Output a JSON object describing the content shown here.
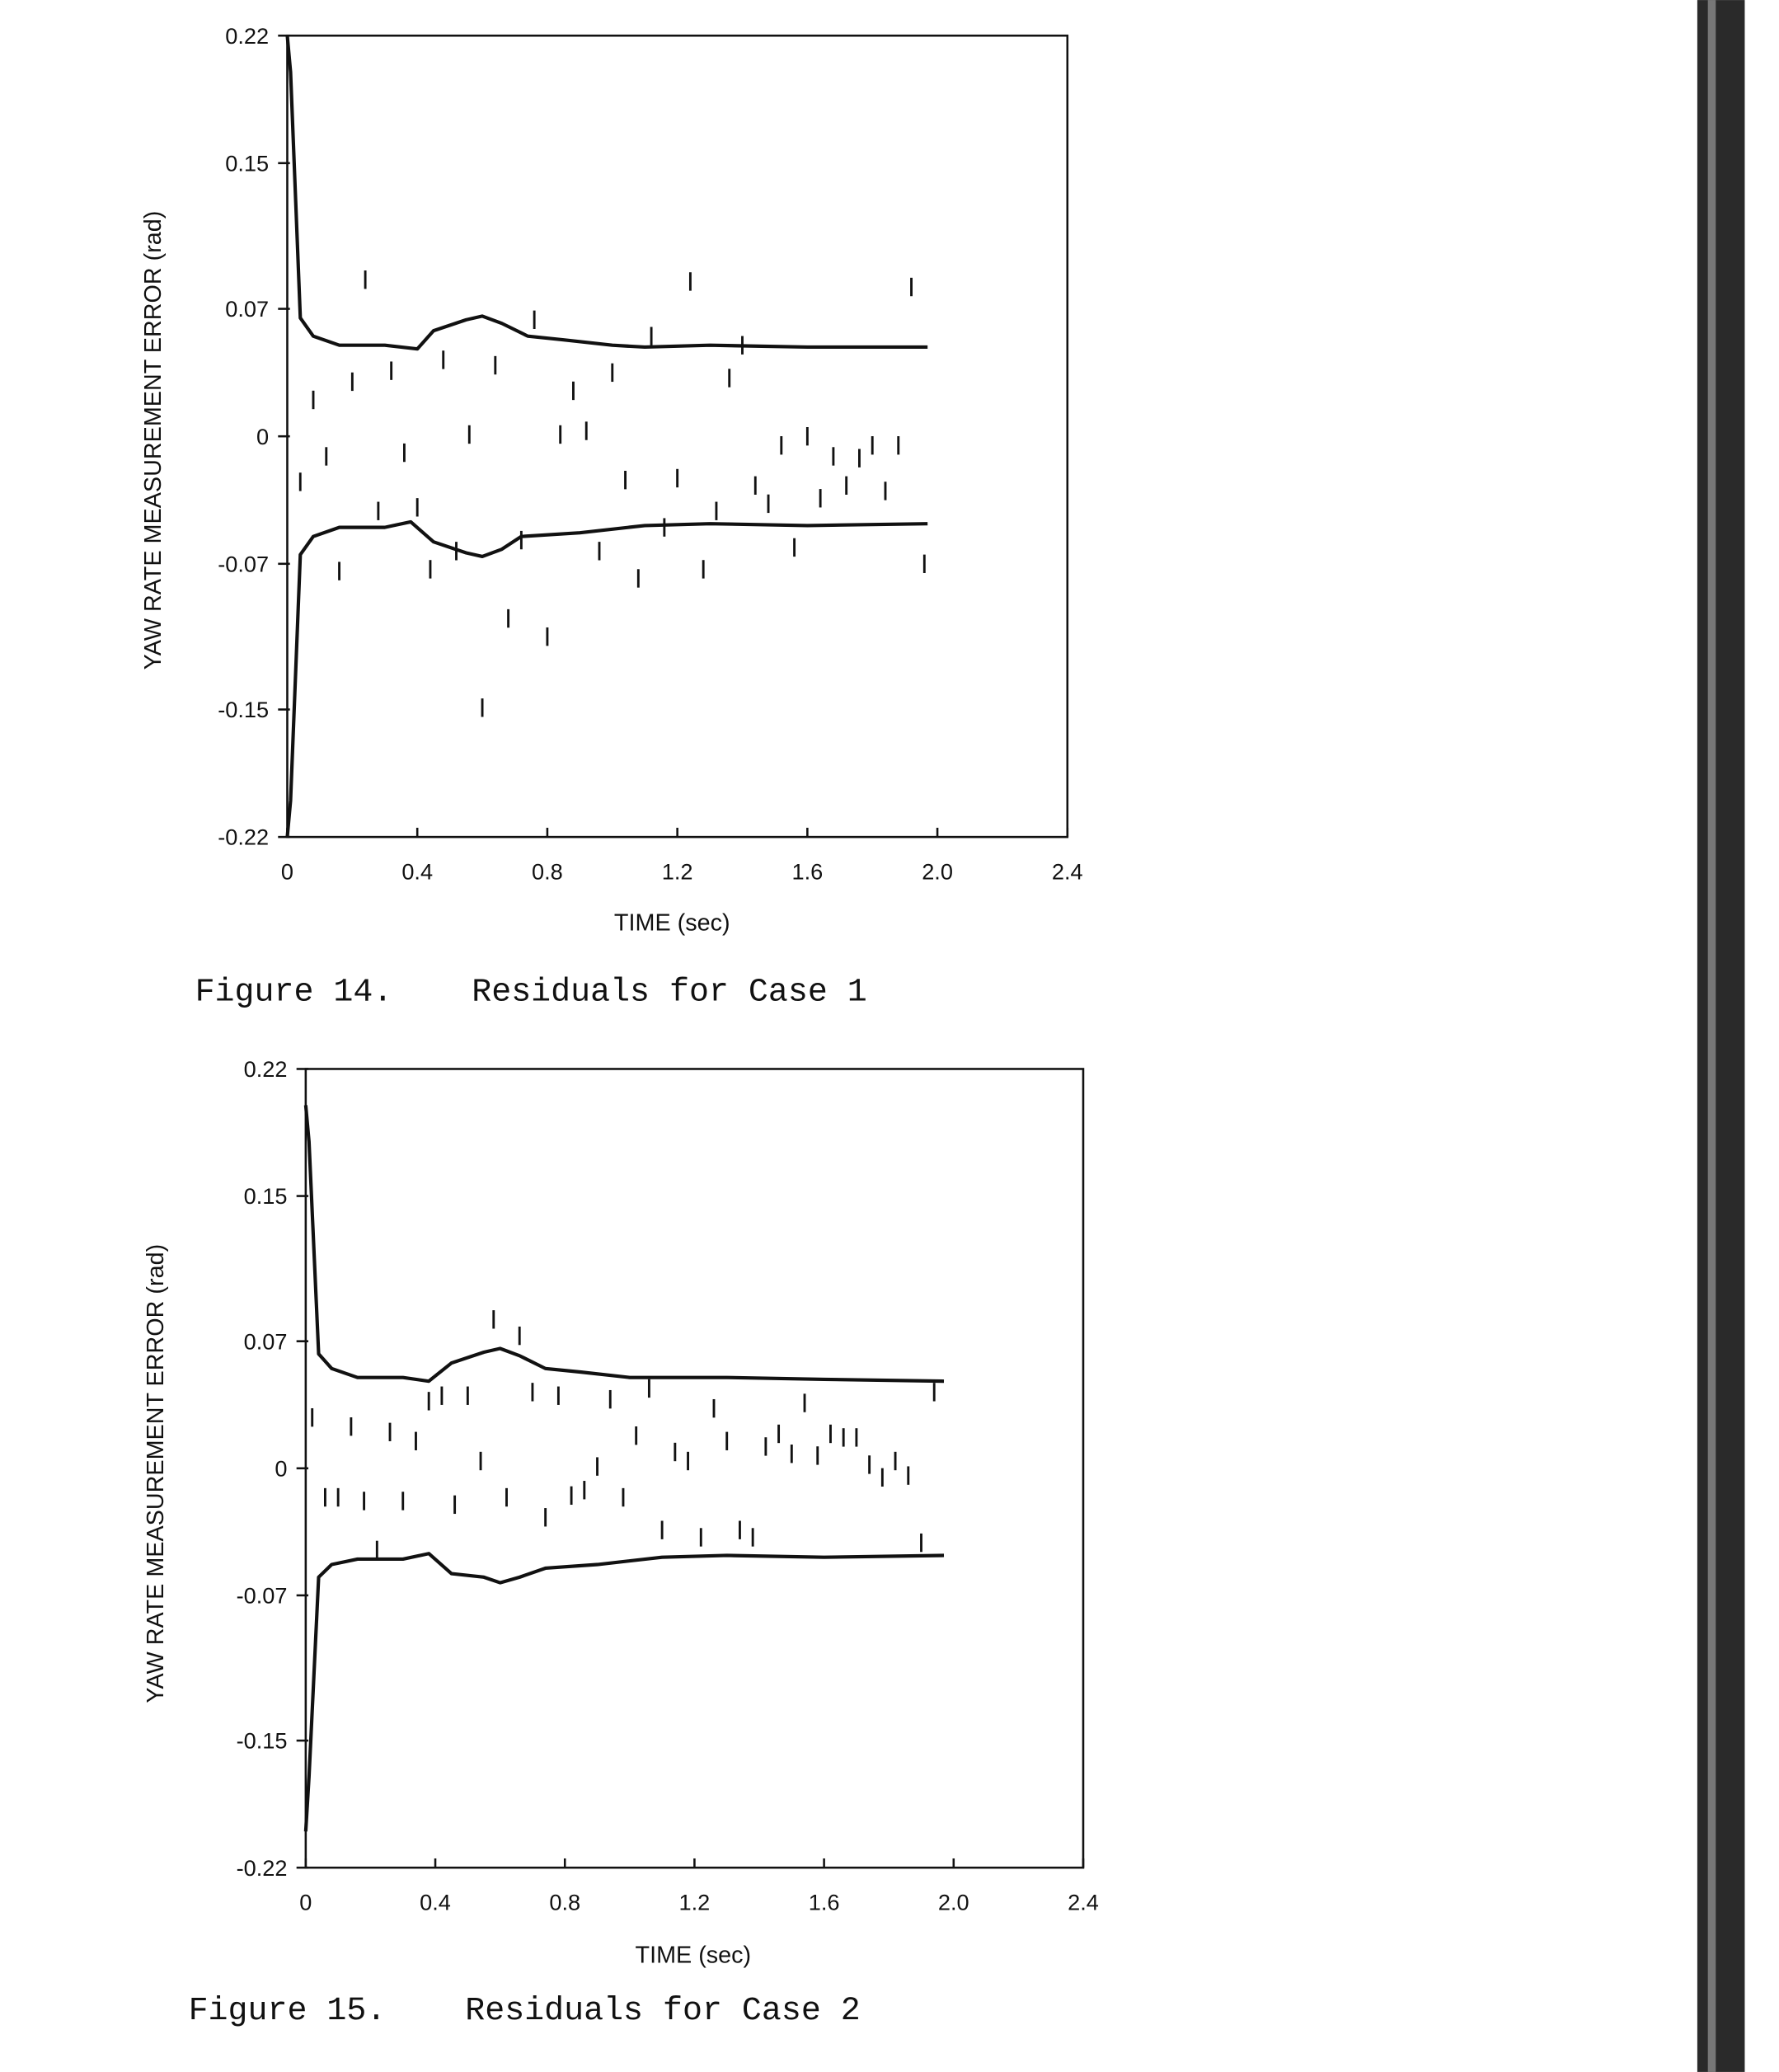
{
  "chart_data": [
    {
      "type": "scatter",
      "caption": "Figure 14.    Residuals for Case 1",
      "xlabel": "TIME (sec)",
      "ylabel": "YAW RATE MEASUREMENT ERROR (rad)",
      "xlim": [
        0,
        2.4
      ],
      "ylim": [
        -0.22,
        0.22
      ],
      "xticks": [
        "0",
        "0.4",
        "0.8",
        "1.2",
        "1.6",
        "2.0",
        "2.4"
      ],
      "yticks": [
        "0.22",
        "0.15",
        "0.07",
        "0",
        "-0.07",
        "-0.15",
        "-0.22"
      ],
      "grid": false,
      "marker": "vertical-tick",
      "residuals": {
        "x": [
          0.04,
          0.08,
          0.12,
          0.16,
          0.2,
          0.24,
          0.28,
          0.32,
          0.36,
          0.4,
          0.44,
          0.48,
          0.52,
          0.56,
          0.6,
          0.64,
          0.68,
          0.72,
          0.76,
          0.8,
          0.84,
          0.88,
          0.92,
          0.96,
          1.0,
          1.04,
          1.08,
          1.12,
          1.16,
          1.2,
          1.24,
          1.28,
          1.32,
          1.36,
          1.4,
          1.44,
          1.48,
          1.52,
          1.56,
          1.6,
          1.64,
          1.68,
          1.72,
          1.76,
          1.8,
          1.84,
          1.88,
          1.92,
          1.96
        ],
        "y": [
          -0.025,
          0.02,
          -0.011,
          -0.074,
          0.03,
          0.086,
          -0.041,
          0.036,
          -0.009,
          -0.039,
          -0.073,
          0.042,
          -0.063,
          0.001,
          -0.149,
          0.039,
          -0.1,
          -0.057,
          0.064,
          -0.11,
          0.001,
          0.025,
          0.003,
          -0.063,
          0.035,
          -0.024,
          -0.078,
          0.055,
          -0.05,
          -0.023,
          0.085,
          -0.073,
          -0.041,
          0.032,
          0.05,
          -0.027,
          -0.037,
          -0.005,
          -0.061,
          0.0,
          -0.034,
          -0.011,
          -0.027,
          -0.012,
          -0.005,
          -0.03,
          -0.005,
          0.082,
          -0.07
        ]
      },
      "upper_bound": [
        [
          0,
          0.22
        ],
        [
          0.01,
          0.2
        ],
        [
          0.04,
          0.065
        ],
        [
          0.08,
          0.055
        ],
        [
          0.16,
          0.05
        ],
        [
          0.3,
          0.05
        ],
        [
          0.4,
          0.048
        ],
        [
          0.45,
          0.058
        ],
        [
          0.55,
          0.064
        ],
        [
          0.6,
          0.066
        ],
        [
          0.66,
          0.062
        ],
        [
          0.74,
          0.055
        ],
        [
          0.85,
          0.053
        ],
        [
          1.0,
          0.05
        ],
        [
          1.1,
          0.049
        ],
        [
          1.3,
          0.05
        ],
        [
          1.6,
          0.049
        ],
        [
          1.97,
          0.049
        ]
      ],
      "lower_bound": [
        [
          0,
          -0.22
        ],
        [
          0.01,
          -0.2
        ],
        [
          0.04,
          -0.065
        ],
        [
          0.08,
          -0.055
        ],
        [
          0.16,
          -0.05
        ],
        [
          0.3,
          -0.05
        ],
        [
          0.38,
          -0.047
        ],
        [
          0.45,
          -0.058
        ],
        [
          0.55,
          -0.064
        ],
        [
          0.6,
          -0.066
        ],
        [
          0.66,
          -0.062
        ],
        [
          0.72,
          -0.055
        ],
        [
          0.9,
          -0.053
        ],
        [
          1.1,
          -0.049
        ],
        [
          1.3,
          -0.048
        ],
        [
          1.6,
          -0.049
        ],
        [
          1.97,
          -0.048
        ]
      ]
    },
    {
      "type": "scatter",
      "caption": "Figure 15.    Residuals for Case 2",
      "xlabel": "TIME (sec)",
      "ylabel": "YAW RATE MEASUREMENT ERROR (rad)",
      "xlim": [
        0,
        2.4
      ],
      "ylim": [
        -0.22,
        0.22
      ],
      "xticks": [
        "0",
        "0.4",
        "0.8",
        "1.2",
        "1.6",
        "2.0",
        "2.4"
      ],
      "yticks": [
        "0.22",
        "0.15",
        "0.07",
        "0",
        "-0.07",
        "-0.15",
        "-0.22"
      ],
      "grid": false,
      "marker": "vertical-tick",
      "residuals": {
        "x": [
          0.02,
          0.06,
          0.1,
          0.14,
          0.18,
          0.22,
          0.26,
          0.3,
          0.34,
          0.38,
          0.42,
          0.46,
          0.5,
          0.54,
          0.58,
          0.62,
          0.66,
          0.7,
          0.74,
          0.78,
          0.82,
          0.86,
          0.9,
          0.94,
          0.98,
          1.02,
          1.06,
          1.1,
          1.14,
          1.18,
          1.22,
          1.26,
          1.3,
          1.34,
          1.38,
          1.42,
          1.46,
          1.5,
          1.54,
          1.58,
          1.62,
          1.66,
          1.7,
          1.74,
          1.78,
          1.82,
          1.86,
          1.9,
          1.94
        ],
        "y": [
          0.028,
          -0.016,
          -0.016,
          0.023,
          -0.018,
          -0.045,
          0.02,
          -0.018,
          0.015,
          0.037,
          0.04,
          -0.02,
          0.04,
          0.004,
          0.082,
          -0.016,
          0.073,
          0.042,
          -0.027,
          0.04,
          -0.015,
          -0.012,
          0.001,
          0.038,
          -0.016,
          0.018,
          0.044,
          -0.034,
          0.009,
          0.004,
          -0.038,
          0.033,
          0.015,
          -0.034,
          -0.038,
          0.012,
          0.019,
          0.008,
          0.036,
          0.007,
          0.019,
          0.017,
          0.017,
          0.002,
          -0.005,
          0.004,
          -0.004,
          -0.041,
          0.042
        ]
      },
      "upper_bound": [
        [
          0,
          0.2
        ],
        [
          0.01,
          0.18
        ],
        [
          0.04,
          0.063
        ],
        [
          0.08,
          0.055
        ],
        [
          0.16,
          0.05
        ],
        [
          0.3,
          0.05
        ],
        [
          0.38,
          0.048
        ],
        [
          0.45,
          0.058
        ],
        [
          0.55,
          0.064
        ],
        [
          0.6,
          0.066
        ],
        [
          0.66,
          0.062
        ],
        [
          0.74,
          0.055
        ],
        [
          0.85,
          0.053
        ],
        [
          1.0,
          0.05
        ],
        [
          1.3,
          0.05
        ],
        [
          1.6,
          0.049
        ],
        [
          1.97,
          0.048
        ]
      ],
      "lower_bound": [
        [
          0,
          -0.2
        ],
        [
          0.01,
          -0.17
        ],
        [
          0.04,
          -0.06
        ],
        [
          0.08,
          -0.053
        ],
        [
          0.16,
          -0.05
        ],
        [
          0.3,
          -0.05
        ],
        [
          0.38,
          -0.047
        ],
        [
          0.45,
          -0.058
        ],
        [
          0.55,
          -0.06
        ],
        [
          0.6,
          -0.063
        ],
        [
          0.66,
          -0.06
        ],
        [
          0.74,
          -0.055
        ],
        [
          0.9,
          -0.053
        ],
        [
          1.1,
          -0.049
        ],
        [
          1.3,
          -0.048
        ],
        [
          1.6,
          -0.049
        ],
        [
          1.97,
          -0.048
        ]
      ]
    }
  ],
  "colors": {
    "ink": "#111111",
    "paper": "#ffffff",
    "scan_edge": "#2a2a2a"
  }
}
